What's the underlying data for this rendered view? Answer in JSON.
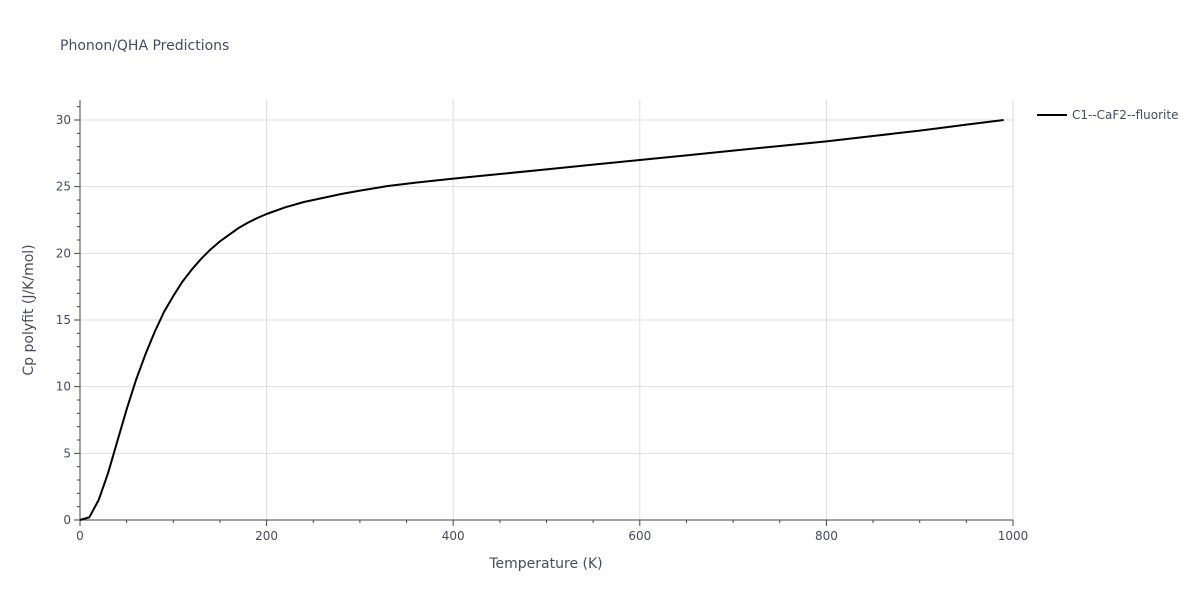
{
  "chart_data": {
    "type": "line",
    "title": "Phonon/QHA Predictions",
    "xlabel": "Temperature (K)",
    "ylabel": "Cp polyfit (J/K/mol)",
    "xlim": [
      0,
      1000
    ],
    "ylim": [
      0,
      31.5
    ],
    "xticks": [
      0,
      200,
      400,
      600,
      800,
      1000
    ],
    "yticks": [
      0,
      5,
      10,
      15,
      20,
      25,
      30
    ],
    "grid": true,
    "legend_position": "top-right",
    "series": [
      {
        "name": "C1--CaF2--fluorite",
        "color": "#000000",
        "x": [
          0,
          10,
          20,
          30,
          40,
          50,
          60,
          70,
          80,
          90,
          100,
          110,
          120,
          130,
          140,
          150,
          160,
          170,
          180,
          190,
          200,
          220,
          240,
          260,
          280,
          300,
          330,
          360,
          400,
          450,
          500,
          550,
          600,
          650,
          700,
          750,
          800,
          850,
          900,
          950,
          990
        ],
        "y": [
          0,
          0.2,
          1.5,
          3.5,
          5.9,
          8.3,
          10.5,
          12.4,
          14.1,
          15.6,
          16.8,
          17.9,
          18.8,
          19.6,
          20.3,
          20.9,
          21.4,
          21.9,
          22.3,
          22.65,
          22.95,
          23.45,
          23.85,
          24.15,
          24.45,
          24.7,
          25.05,
          25.3,
          25.6,
          25.95,
          26.3,
          26.65,
          27.0,
          27.35,
          27.7,
          28.05,
          28.4,
          28.8,
          29.2,
          29.65,
          30.0
        ]
      }
    ]
  }
}
